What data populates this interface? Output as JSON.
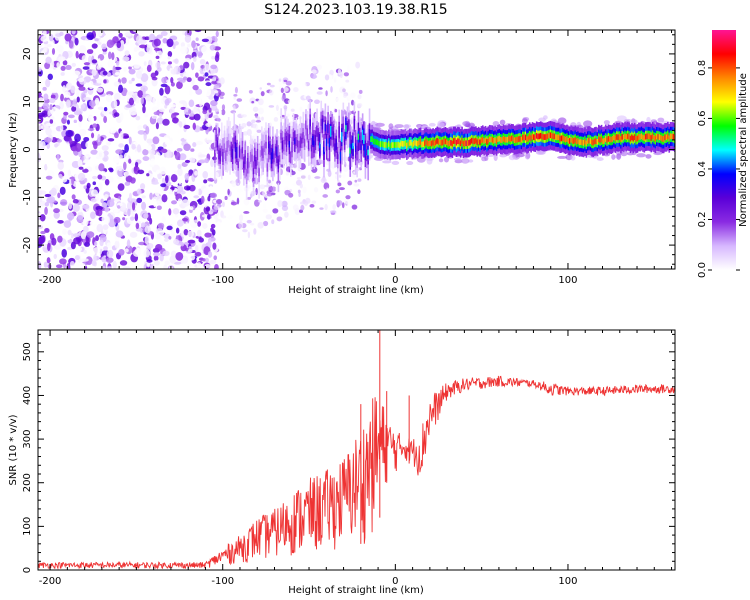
{
  "title": "S124.2023.103.19.38.R15",
  "chart_data": [
    {
      "type": "heatmap",
      "name": "spectrogram",
      "xlabel": "Height of straight line (km)",
      "ylabel": "Frequency (Hz)",
      "xlim": [
        -207,
        162
      ],
      "ylim": [
        -25,
        25
      ],
      "xticks": [
        -200,
        -100,
        0,
        100
      ],
      "yticks": [
        -20,
        -10,
        0,
        10,
        20
      ],
      "colorbar": {
        "label": "Normalized spectral amplitude",
        "range": [
          0,
          0.95
        ],
        "ticks": [
          "0.0",
          "0.2",
          "0.4",
          "0.6",
          "0.8"
        ],
        "tick_values": [
          0,
          0.2,
          0.4,
          0.6,
          0.8
        ],
        "colors": [
          "#ffffff",
          "#d7b8ff",
          "#8a2be2",
          "#5a00d8",
          "#0000ff",
          "#00ffff",
          "#00ff00",
          "#ffff00",
          "#ff8800",
          "#ff0000",
          "#ff1493"
        ]
      },
      "ridge": {
        "description_points_x_km": [
          -105,
          -95,
          -85,
          -75,
          -65,
          -55,
          -45,
          -35,
          -25,
          -15,
          -5,
          5,
          20,
          40,
          60,
          80,
          90,
          100,
          110,
          130,
          160
        ],
        "frequency_hz": [
          0,
          0,
          -3,
          -1,
          0,
          2,
          3,
          1,
          3,
          2,
          1,
          1,
          1.5,
          1.5,
          2,
          2.5,
          3,
          2,
          1.5,
          2.5,
          2.5
        ],
        "peak_amplitude": [
          0.3,
          0.35,
          0.3,
          0.35,
          0.35,
          0.4,
          0.45,
          0.5,
          0.55,
          0.6,
          0.65,
          0.7,
          0.85,
          0.9,
          0.8,
          0.9,
          0.85,
          0.85,
          0.8,
          0.85,
          0.85
        ]
      }
    },
    {
      "type": "line",
      "name": "snr",
      "xlabel": "Height of straight line (km)",
      "ylabel": "SNR (10 * v/v)",
      "xlim": [
        -207,
        162
      ],
      "ylim": [
        0,
        550
      ],
      "xticks": [
        -200,
        -100,
        0,
        100
      ],
      "yticks": [
        0,
        100,
        200,
        300,
        400,
        500
      ],
      "color": "#ee3333",
      "envelope": {
        "x": [
          -207,
          -110,
          -100,
          -90,
          -80,
          -70,
          -60,
          -50,
          -40,
          -30,
          -20,
          -15,
          -10,
          -5,
          0,
          5,
          10,
          15,
          20,
          30,
          40,
          60,
          80,
          90,
          100,
          120,
          140,
          162
        ],
        "low": [
          4,
          4,
          10,
          15,
          20,
          25,
          30,
          30,
          40,
          50,
          60,
          60,
          100,
          200,
          220,
          250,
          240,
          200,
          300,
          390,
          410,
          420,
          420,
          400,
          400,
          400,
          405,
          405
        ],
        "high": [
          18,
          18,
          50,
          80,
          120,
          140,
          180,
          210,
          230,
          260,
          330,
          380,
          420,
          360,
          320,
          310,
          300,
          330,
          400,
          430,
          440,
          445,
          435,
          430,
          420,
          420,
          425,
          425
        ]
      },
      "spikes": [
        {
          "x": -9,
          "y": 550
        },
        {
          "x": -20,
          "y": 380
        },
        {
          "x": -5,
          "y": 410
        },
        {
          "x": 8,
          "y": 400
        }
      ]
    }
  ]
}
